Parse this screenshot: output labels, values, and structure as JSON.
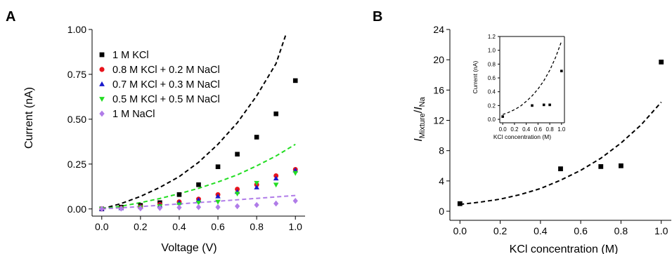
{
  "panels": {
    "a": {
      "letter": "A",
      "xlabel": "Voltage (V)",
      "ylabel": "Current (nA)",
      "xticks": [
        "0.0",
        "0.2",
        "0.4",
        "0.6",
        "0.8",
        "1.0"
      ],
      "yticks": [
        "0.00",
        "0.25",
        "0.50",
        "0.75",
        "1.00"
      ]
    },
    "b": {
      "letter": "B",
      "xlabel": "KCl concentration (M)",
      "ylabel_i1": "I",
      "ylabel_sub1": "Mixture",
      "ylabel_sep": "/",
      "ylabel_i2": "I",
      "ylabel_sub2": "Na",
      "xticks": [
        "0.0",
        "0.2",
        "0.4",
        "0.6",
        "0.8",
        "1.0"
      ],
      "yticks": [
        "0",
        "4",
        "8",
        "12",
        "16",
        "20",
        "24"
      ],
      "inset": {
        "xlabel": "KCl concentration (M)",
        "ylabel": "Current (nA)",
        "xticks": [
          "0.0",
          "0.2",
          "0.4",
          "0.6",
          "0.8",
          "1.0"
        ],
        "yticks": [
          "0.0",
          "0.2",
          "0.4",
          "0.6",
          "0.8",
          "1.0",
          "1.2"
        ]
      }
    }
  },
  "chart_data": [
    {
      "type": "scatter",
      "panel": "A",
      "title": "",
      "xlabel": "Voltage (V)",
      "ylabel": "Current (nA)",
      "xlim": [
        -0.05,
        1.05
      ],
      "ylim": [
        -0.04,
        1.0
      ],
      "legend_position": "top-left",
      "x": [
        0.0,
        0.1,
        0.2,
        0.3,
        0.4,
        0.5,
        0.6,
        0.7,
        0.8,
        0.9,
        1.0
      ],
      "series": [
        {
          "name": "1 M KCl",
          "marker": "square",
          "color": "#000000",
          "values": [
            0.0,
            0.01,
            0.02,
            0.035,
            0.08,
            0.135,
            0.235,
            0.305,
            0.4,
            0.53,
            0.715
          ]
        },
        {
          "name": "0.8 M KCl + 0.2 M NaCl",
          "marker": "circle",
          "color": "#e8141c",
          "values": [
            0.0,
            0.005,
            0.012,
            0.025,
            0.04,
            0.055,
            0.08,
            0.11,
            0.135,
            0.185,
            0.22
          ]
        },
        {
          "name": "0.7 M KCl + 0.3 M NaCl",
          "marker": "triangle-up",
          "color": "#1a1acc",
          "values": [
            0.0,
            0.004,
            0.01,
            0.02,
            0.035,
            0.05,
            0.07,
            0.095,
            0.12,
            0.17,
            0.215
          ]
        },
        {
          "name": "0.5 M KCl + 0.5 M NaCl",
          "marker": "triangle-down",
          "color": "#22dd22",
          "values": [
            0.0,
            0.003,
            0.008,
            0.015,
            0.025,
            0.035,
            0.04,
            0.085,
            0.145,
            0.135,
            0.2
          ]
        },
        {
          "name": "1 M NaCl",
          "marker": "diamond",
          "color": "#b07ce8",
          "values": [
            0.0,
            0.002,
            0.003,
            0.005,
            0.008,
            0.01,
            0.01,
            0.015,
            0.022,
            0.03,
            0.045
          ]
        }
      ],
      "fit_curves": [
        {
          "color": "#000000",
          "style": "dashed",
          "x": [
            0.0,
            0.1,
            0.2,
            0.3,
            0.4,
            0.5,
            0.6,
            0.7,
            0.8,
            0.9,
            0.95
          ],
          "y": [
            0.0,
            0.03,
            0.07,
            0.12,
            0.18,
            0.26,
            0.36,
            0.48,
            0.63,
            0.81,
            0.97
          ]
        },
        {
          "color": "#22dd22",
          "style": "dashed",
          "x": [
            0.0,
            0.1,
            0.2,
            0.3,
            0.4,
            0.5,
            0.6,
            0.7,
            0.8,
            0.9,
            1.0
          ],
          "y": [
            0.0,
            0.015,
            0.035,
            0.058,
            0.085,
            0.115,
            0.15,
            0.19,
            0.24,
            0.295,
            0.36
          ]
        },
        {
          "color": "#b07ce8",
          "style": "dashed",
          "x": [
            0.0,
            0.2,
            0.4,
            0.6,
            0.8,
            1.0
          ],
          "y": [
            0.0,
            0.013,
            0.028,
            0.043,
            0.059,
            0.075
          ]
        }
      ]
    },
    {
      "type": "scatter",
      "panel": "B",
      "title": "",
      "xlabel": "KCl concentration (M)",
      "ylabel": "IMixture/INa",
      "xlim": [
        -0.05,
        1.05
      ],
      "ylim": [
        -1.2,
        24
      ],
      "series": [
        {
          "marker": "square",
          "color": "#000000",
          "x": [
            0.0,
            0.5,
            0.7,
            0.8,
            1.0
          ],
          "values": [
            1.0,
            5.6,
            5.9,
            6.0,
            19.7
          ]
        }
      ],
      "fit_curves": [
        {
          "color": "#000000",
          "style": "dashed",
          "x": [
            0.0,
            0.1,
            0.2,
            0.3,
            0.4,
            0.5,
            0.6,
            0.7,
            0.8,
            0.9,
            1.0
          ],
          "y": [
            0.9,
            1.2,
            1.6,
            2.2,
            3.0,
            4.1,
            5.4,
            7.0,
            9.0,
            11.4,
            14.4
          ]
        }
      ]
    },
    {
      "type": "scatter",
      "panel": "B-inset",
      "title": "",
      "xlabel": "KCl concentration (M)",
      "ylabel": "Current (nA)",
      "xlim": [
        -0.05,
        1.05
      ],
      "ylim": [
        -0.05,
        1.2
      ],
      "series": [
        {
          "marker": "square",
          "color": "#000000",
          "x": [
            0.0,
            0.5,
            0.7,
            0.8,
            1.0
          ],
          "values": [
            0.04,
            0.2,
            0.21,
            0.21,
            0.7
          ]
        }
      ],
      "fit_curves": [
        {
          "color": "#000000",
          "style": "dashed",
          "x": [
            0.0,
            0.1,
            0.2,
            0.3,
            0.4,
            0.5,
            0.6,
            0.7,
            0.8,
            0.9,
            1.0
          ],
          "y": [
            0.07,
            0.1,
            0.14,
            0.19,
            0.26,
            0.34,
            0.44,
            0.56,
            0.71,
            0.9,
            1.13
          ]
        }
      ]
    }
  ]
}
